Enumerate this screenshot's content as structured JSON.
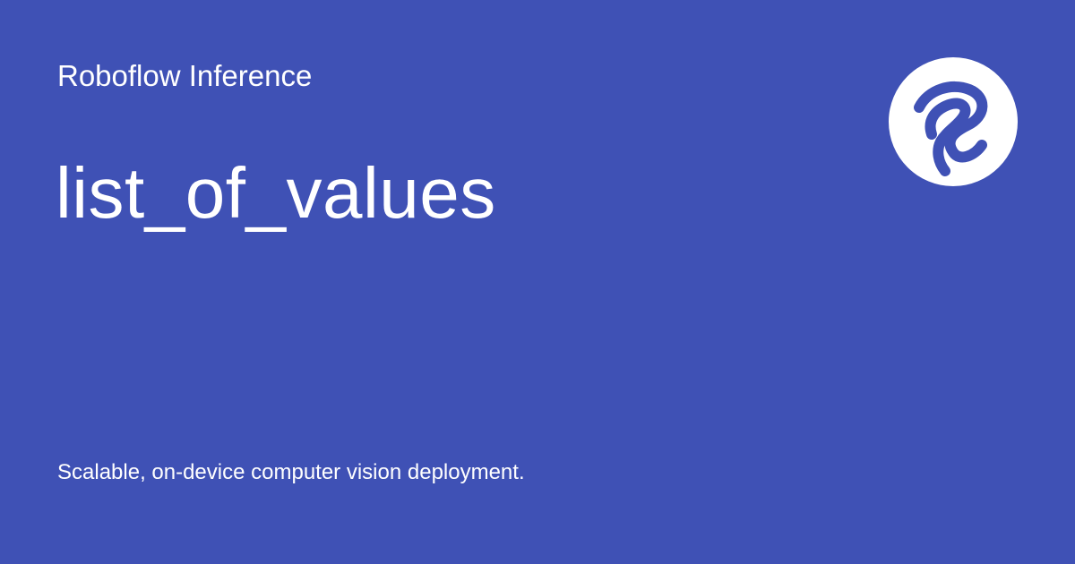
{
  "brand": {
    "site_name": "Roboflow Inference",
    "logo_icon": "roboflow-logo-icon"
  },
  "page": {
    "title": "list_of_values",
    "tagline": "Scalable, on-device computer vision deployment."
  },
  "colors": {
    "background": "#3f51b5",
    "text": "#ffffff",
    "logo_circle": "#ffffff",
    "logo_mark": "#3f51b5"
  }
}
